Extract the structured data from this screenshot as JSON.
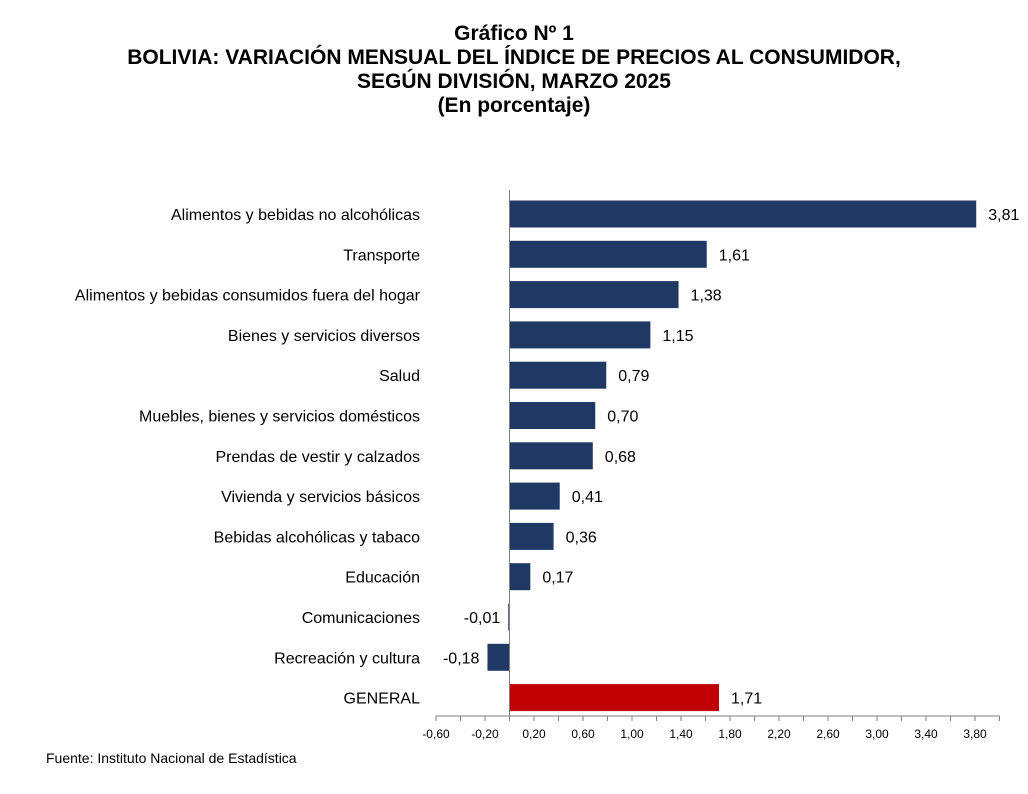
{
  "title": {
    "line1": "Gráfico Nº 1",
    "line2": "BOLIVIA: VARIACIÓN MENSUAL DEL ÍNDICE DE PRECIOS AL CONSUMIDOR,",
    "line3": "SEGÚN DIVISIÓN, MARZO 2025",
    "line4": "(En porcentaje)"
  },
  "source": "Fuente: Instituto Nacional de Estadística",
  "colors": {
    "bar": "#1f3864",
    "highlight": "#c00000",
    "axis": "#7f7f7f"
  },
  "chart_data": {
    "type": "bar",
    "orientation": "horizontal",
    "title": "BOLIVIA: VARIACIÓN MENSUAL DEL ÍNDICE DE PRECIOS AL CONSUMIDOR, SEGÚN DIVISIÓN, MARZO 2025",
    "subtitle": "(En porcentaje)",
    "categories": [
      "Alimentos y bebidas no alcohólicas",
      "Transporte",
      "Alimentos y bebidas consumidos fuera del hogar",
      "Bienes y servicios diversos",
      "Salud",
      "Muebles, bienes y servicios domésticos",
      "Prendas de vestir y calzados",
      "Vivienda y servicios básicos",
      "Bebidas alcohólicas y tabaco",
      "Educación",
      "Comunicaciones",
      "Recreación y cultura",
      "GENERAL"
    ],
    "values": [
      3.81,
      1.61,
      1.38,
      1.15,
      0.79,
      0.7,
      0.68,
      0.41,
      0.36,
      0.17,
      -0.01,
      -0.18,
      1.71
    ],
    "value_labels": [
      "3,81",
      "1,61",
      "1,38",
      "1,15",
      "0,79",
      "0,70",
      "0,68",
      "0,41",
      "0,36",
      "0,17",
      "-0,01",
      "-0,18",
      "1,71"
    ],
    "highlight_category": "GENERAL",
    "xlim": [
      -0.6,
      4.0
    ],
    "xticks": [
      -0.6,
      -0.2,
      0.2,
      0.6,
      1.0,
      1.4,
      1.8,
      2.2,
      2.6,
      3.0,
      3.4,
      3.8
    ],
    "xtick_labels": [
      "-0,60",
      "-0,20",
      "0,20",
      "0,60",
      "1,00",
      "1,40",
      "1,80",
      "2,20",
      "2,60",
      "3,00",
      "3,40",
      "3,80"
    ],
    "grid": false,
    "legend": "none",
    "xlabel": "",
    "ylabel": ""
  }
}
